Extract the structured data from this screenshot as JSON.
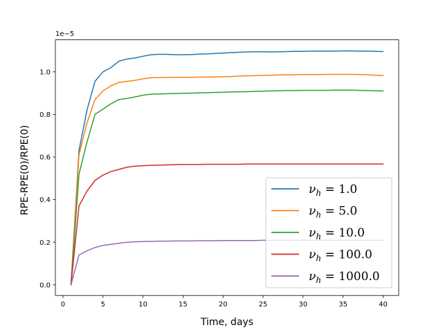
{
  "chart_data": {
    "type": "line",
    "title": "",
    "xlabel": "Time, days",
    "ylabel": "RPE-RPE(0)/RPE(0)",
    "offset_text": "1e−5",
    "xlim": [
      -0.95,
      41.95
    ],
    "ylim": [
      -0.5,
      11.5
    ],
    "y_scale_factor": 1e-05,
    "xticks": [
      0,
      5,
      10,
      15,
      20,
      25,
      30,
      35,
      40
    ],
    "yticks": [
      0,
      2,
      4,
      6,
      8,
      10
    ],
    "ytick_labels": [
      "0.0",
      "0.2",
      "0.4",
      "0.6",
      "0.8",
      "1.0"
    ],
    "grid": false,
    "legend_position": "bottom-right",
    "x": [
      1,
      2,
      3,
      4,
      5,
      6,
      7,
      8,
      9,
      10,
      11,
      12,
      13,
      14,
      15,
      16,
      17,
      18,
      19,
      20,
      21,
      22,
      23,
      24,
      25,
      26,
      27,
      28,
      29,
      30,
      31,
      32,
      33,
      34,
      35,
      36,
      37,
      38,
      39,
      40
    ],
    "series": [
      {
        "name": "1.0",
        "legend_symbol": "ν",
        "legend_subscript": "h",
        "color": "#1f77b4",
        "values": [
          0,
          6.3,
          8.2,
          9.55,
          10.0,
          10.2,
          10.5,
          10.6,
          10.65,
          10.73,
          10.8,
          10.82,
          10.82,
          10.8,
          10.8,
          10.81,
          10.83,
          10.84,
          10.86,
          10.88,
          10.9,
          10.92,
          10.93,
          10.94,
          10.94,
          10.93,
          10.94,
          10.95,
          10.96,
          10.96,
          10.97,
          10.97,
          10.97,
          10.97,
          10.98,
          10.98,
          10.97,
          10.97,
          10.96,
          10.95
        ]
      },
      {
        "name": "5.0",
        "legend_symbol": "ν",
        "legend_subscript": "h",
        "color": "#ff7f0e",
        "values": [
          0,
          6.1,
          7.6,
          8.7,
          9.1,
          9.35,
          9.5,
          9.55,
          9.6,
          9.67,
          9.72,
          9.73,
          9.74,
          9.74,
          9.74,
          9.74,
          9.75,
          9.76,
          9.76,
          9.77,
          9.78,
          9.8,
          9.81,
          9.82,
          9.83,
          9.84,
          9.85,
          9.86,
          9.86,
          9.87,
          9.87,
          9.87,
          9.88,
          9.88,
          9.88,
          9.88,
          9.87,
          9.86,
          9.84,
          9.82
        ]
      },
      {
        "name": "10.0",
        "legend_symbol": "ν",
        "legend_subscript": "h",
        "color": "#2ca02c",
        "values": [
          0,
          5.2,
          6.7,
          8.0,
          8.25,
          8.5,
          8.7,
          8.75,
          8.82,
          8.9,
          8.95,
          8.96,
          8.97,
          8.98,
          8.99,
          9.0,
          9.01,
          9.02,
          9.03,
          9.04,
          9.05,
          9.06,
          9.07,
          9.08,
          9.09,
          9.1,
          9.11,
          9.12,
          9.12,
          9.13,
          9.13,
          9.13,
          9.13,
          9.14,
          9.14,
          9.14,
          9.13,
          9.12,
          9.11,
          9.1
        ]
      },
      {
        "name": "100.0",
        "legend_symbol": "ν",
        "legend_subscript": "h",
        "color": "#d62728",
        "values": [
          0,
          3.7,
          4.4,
          4.9,
          5.15,
          5.32,
          5.42,
          5.52,
          5.57,
          5.59,
          5.61,
          5.62,
          5.63,
          5.64,
          5.65,
          5.65,
          5.65,
          5.66,
          5.66,
          5.66,
          5.66,
          5.66,
          5.67,
          5.67,
          5.67,
          5.67,
          5.67,
          5.67,
          5.67,
          5.67,
          5.67,
          5.67,
          5.67,
          5.67,
          5.67,
          5.67,
          5.67,
          5.67,
          5.67,
          5.67
        ]
      },
      {
        "name": "1000.0",
        "legend_symbol": "ν",
        "legend_subscript": "h",
        "color": "#9467bd",
        "values": [
          0,
          1.4,
          1.6,
          1.75,
          1.85,
          1.9,
          1.95,
          2.0,
          2.02,
          2.03,
          2.04,
          2.05,
          2.05,
          2.06,
          2.06,
          2.06,
          2.07,
          2.07,
          2.07,
          2.08,
          2.08,
          2.08,
          2.08,
          2.08,
          2.09,
          2.09,
          2.09,
          2.09,
          2.09,
          2.09,
          2.09,
          2.09,
          2.09,
          2.09,
          2.09,
          2.09,
          2.09,
          2.09,
          2.09,
          2.09
        ]
      }
    ]
  }
}
